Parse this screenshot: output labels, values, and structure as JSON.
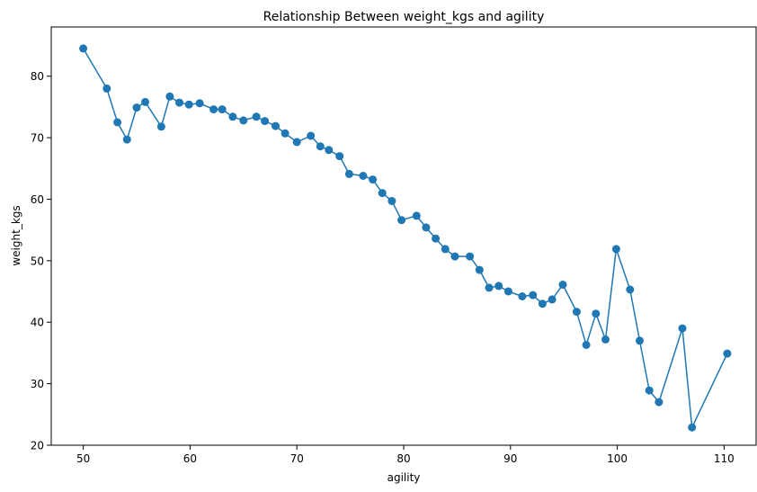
{
  "chart_data": {
    "type": "line",
    "title": "Relationship Between weight_kgs and agility",
    "xlabel": "agility",
    "ylabel": "weight_kgs",
    "xlim": [
      47,
      113
    ],
    "ylim": [
      20,
      88
    ],
    "xticks": [
      50,
      60,
      70,
      80,
      90,
      100,
      110
    ],
    "yticks": [
      20,
      30,
      40,
      50,
      60,
      70,
      80
    ],
    "grid": false,
    "legend": "none",
    "markers": true,
    "series": [
      {
        "color": "#1f77b4",
        "x": [
          50,
          52.2,
          53.2,
          54.1,
          55,
          55.8,
          57.3,
          58.1,
          59,
          59.9,
          60.9,
          62.2,
          63,
          64,
          65,
          66.2,
          67,
          68,
          68.9,
          70,
          71.3,
          72.2,
          73,
          74,
          74.9,
          76.2,
          77.1,
          78,
          78.9,
          79.8,
          81.2,
          82.1,
          83,
          83.9,
          84.8,
          86.2,
          87.1,
          88,
          88.9,
          89.8,
          91.1,
          92.1,
          93,
          93.9,
          94.9,
          96.2,
          97.1,
          98,
          98.9,
          99.9,
          101.2,
          102.1,
          103,
          103.9,
          106.1,
          107,
          110.3
        ],
        "y": [
          84.5,
          78,
          72.5,
          69.7,
          74.9,
          75.8,
          71.8,
          76.7,
          75.7,
          75.4,
          75.6,
          74.6,
          74.6,
          73.4,
          72.8,
          73.4,
          72.7,
          71.9,
          70.7,
          69.3,
          70.3,
          68.6,
          68,
          67,
          64.1,
          63.8,
          63.2,
          61,
          59.7,
          56.6,
          57.3,
          55.4,
          53.6,
          51.9,
          50.7,
          50.7,
          48.5,
          45.6,
          45.9,
          45,
          44.2,
          44.4,
          43,
          43.7,
          46.1,
          41.7,
          36.3,
          41.4,
          37.2,
          51.9,
          45.3,
          37,
          28.9,
          27,
          39,
          22.9,
          34.9
        ]
      }
    ]
  }
}
